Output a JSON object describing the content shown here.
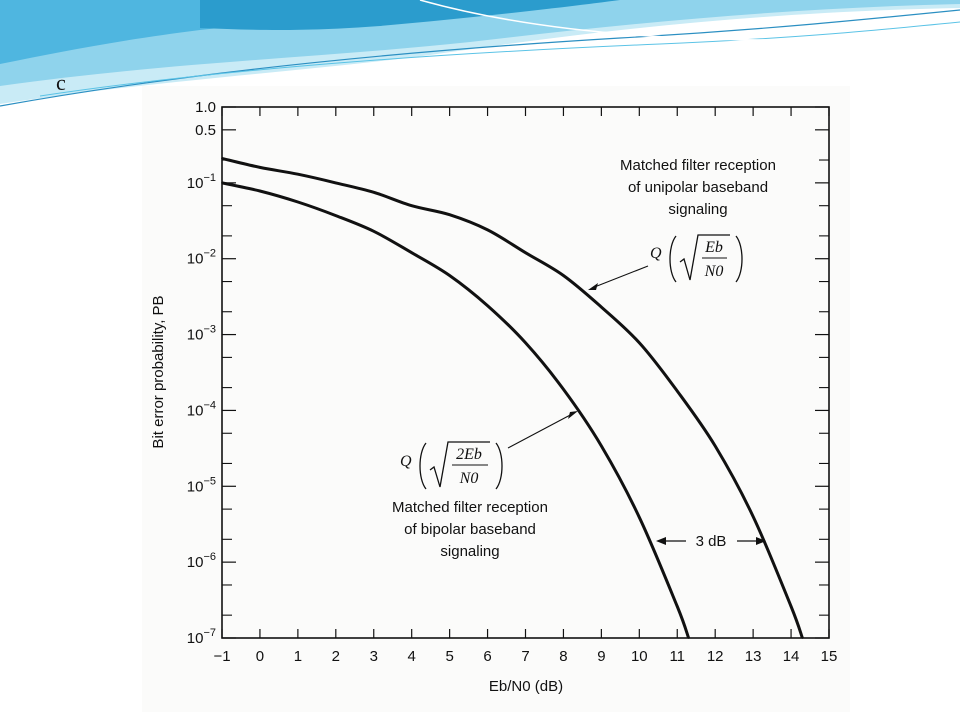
{
  "slide": {
    "title": "c",
    "banner_colors": [
      "#5bc3e6",
      "#a7dff1",
      "#2b8fc2",
      "#d6f0f8"
    ]
  },
  "chart_data": {
    "type": "line",
    "title": "",
    "xlabel": "Eb/N0 (dB)",
    "ylabel": "Bit error probability, PB",
    "xlim": [
      -1,
      15
    ],
    "ylim": [
      1e-07,
      1.0
    ],
    "yscale": "log",
    "grid": false,
    "x_ticks": [
      "−1",
      "0",
      "1",
      "2",
      "3",
      "4",
      "5",
      "6",
      "7",
      "8",
      "9",
      "10",
      "11",
      "12",
      "13",
      "14",
      "15"
    ],
    "y_ticks": [
      {
        "value": 1.0,
        "label": "1.0"
      },
      {
        "value": 0.5,
        "label": "0.5"
      },
      {
        "value": 0.1,
        "base": "10",
        "exp": "−1"
      },
      {
        "value": 0.01,
        "base": "10",
        "exp": "−2"
      },
      {
        "value": 0.001,
        "base": "10",
        "exp": "−3"
      },
      {
        "value": 0.0001,
        "base": "10",
        "exp": "−4"
      },
      {
        "value": 1e-05,
        "base": "10",
        "exp": "−5"
      },
      {
        "value": 1e-06,
        "base": "10",
        "exp": "−6"
      },
      {
        "value": 1e-07,
        "base": "10",
        "exp": "−7"
      }
    ],
    "series": [
      {
        "name": "Matched filter reception of unipolar baseband signaling",
        "formula": "Q(sqrt(Eb/N0))",
        "x": [
          -1,
          0,
          1,
          2,
          3,
          4,
          5,
          6,
          7,
          8,
          9,
          10,
          11,
          12,
          13,
          14,
          14.3
        ],
        "y": [
          0.21,
          0.16,
          0.13,
          0.1,
          0.075,
          0.05,
          0.038,
          0.024,
          0.012,
          0.006,
          0.0023,
          0.00078,
          0.00018,
          3.4e-05,
          4e-06,
          2.6e-07,
          1e-07
        ]
      },
      {
        "name": "Matched filter reception of bipolar baseband signaling",
        "formula": "Q(sqrt(2Eb/N0))",
        "x": [
          -1,
          0,
          1,
          2,
          3,
          4,
          5,
          6,
          7,
          8,
          9,
          10,
          11,
          11.3
        ],
        "y": [
          0.1,
          0.078,
          0.056,
          0.037,
          0.023,
          0.012,
          0.006,
          0.0024,
          0.00078,
          0.00019,
          3.4e-05,
          3.9e-06,
          2.6e-07,
          1e-07
        ]
      }
    ],
    "annotations": {
      "unipolar_label": [
        "Matched filter reception",
        "of unipolar baseband",
        "signaling"
      ],
      "bipolar_label": [
        "Matched filter reception",
        "of bipolar baseband",
        "signaling"
      ],
      "q_symbol": "Q",
      "unipolar_numerator": "Eb",
      "unipolar_denominator": "N0",
      "bipolar_numerator": "2Eb",
      "bipolar_denominator": "N0",
      "gap_label": "3 dB"
    }
  }
}
